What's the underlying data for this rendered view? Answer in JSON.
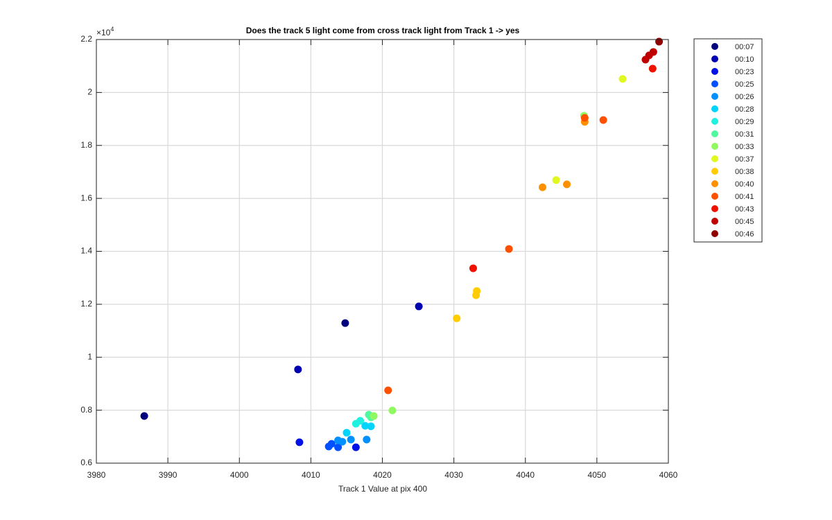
{
  "chart_data": {
    "type": "scatter",
    "title": "Does the track 5 light come from cross track light from Track 1 -> yes",
    "x_label": "Track 1 Value at pix 400",
    "y_multiplier": {
      "base": "×10",
      "exponent": "4"
    },
    "xlim": [
      3980,
      4060
    ],
    "xticks": [
      3980,
      3990,
      4000,
      4010,
      4020,
      4030,
      4040,
      4050,
      4060
    ],
    "ylim": [
      6000,
      22000
    ],
    "yticks": [
      {
        "value": 6000,
        "label": "0.6"
      },
      {
        "value": 8000,
        "label": "0.8"
      },
      {
        "value": 10000,
        "label": "1"
      },
      {
        "value": 12000,
        "label": "1.2"
      },
      {
        "value": 14000,
        "label": "1.4"
      },
      {
        "value": 16000,
        "label": "1.6"
      },
      {
        "value": 18000,
        "label": "1.8"
      },
      {
        "value": 20000,
        "label": "2"
      },
      {
        "value": 22000,
        "label": "2.2"
      }
    ],
    "grid": true,
    "legend_position": "outside-right",
    "series": [
      {
        "name": "00:07",
        "color": "#00007f",
        "x": [
          3986.7,
          4014.8
        ],
        "values": [
          7780,
          11290
        ]
      },
      {
        "name": "00:10",
        "color": "#0000b2",
        "x": [
          4008.2,
          4025.1
        ],
        "values": [
          9540,
          11920
        ]
      },
      {
        "name": "00:23",
        "color": "#0010e6",
        "x": [
          4008.4,
          4016.3
        ],
        "values": [
          6790,
          6600
        ]
      },
      {
        "name": "00:25",
        "color": "#0050ff",
        "x": [
          4012.5,
          4012.9,
          4013.8
        ],
        "values": [
          6630,
          6730,
          6600
        ]
      },
      {
        "name": "00:26",
        "color": "#0090ff",
        "x": [
          4013.8,
          4014.4,
          4015.6,
          4017.8
        ],
        "values": [
          6860,
          6810,
          6890,
          6890
        ]
      },
      {
        "name": "00:28",
        "color": "#00d4ff",
        "x": [
          4015.0,
          4017.6,
          4018.4
        ],
        "values": [
          7150,
          7410,
          7390
        ]
      },
      {
        "name": "00:29",
        "color": "#20f0e0",
        "x": [
          4016.3,
          4016.9
        ],
        "values": [
          7490,
          7600
        ]
      },
      {
        "name": "00:31",
        "color": "#50f8a0",
        "x": [
          4018.1,
          4018.4
        ],
        "values": [
          7830,
          7730
        ]
      },
      {
        "name": "00:33",
        "color": "#90f860",
        "x": [
          4018.8,
          4021.4,
          4048.2
        ],
        "values": [
          7780,
          7990,
          19120
        ]
      },
      {
        "name": "00:37",
        "color": "#e0f820",
        "x": [
          4053.6,
          4044.3
        ],
        "values": [
          20510,
          16690
        ]
      },
      {
        "name": "00:38",
        "color": "#ffcc00",
        "x": [
          4030.4,
          4033.1,
          4033.2
        ],
        "values": [
          11470,
          12340,
          12500
        ]
      },
      {
        "name": "00:40",
        "color": "#ff9000",
        "x": [
          4042.4,
          4045.8,
          4048.3
        ],
        "values": [
          16420,
          16530,
          18890
        ]
      },
      {
        "name": "00:41",
        "color": "#ff5000",
        "x": [
          4020.8,
          4037.7,
          4050.9,
          4048.3
        ],
        "values": [
          8750,
          14090,
          18960,
          19040
        ]
      },
      {
        "name": "00:43",
        "color": "#f01000",
        "x": [
          4032.7,
          4057.8
        ],
        "values": [
          13360,
          20900
        ]
      },
      {
        "name": "00:45",
        "color": "#c00000",
        "x": [
          4056.8,
          4057.3,
          4057.9
        ],
        "values": [
          21240,
          21400,
          21530
        ]
      },
      {
        "name": "00:46",
        "color": "#8f0000",
        "x": [
          4058.7
        ],
        "values": [
          21920
        ]
      }
    ]
  }
}
